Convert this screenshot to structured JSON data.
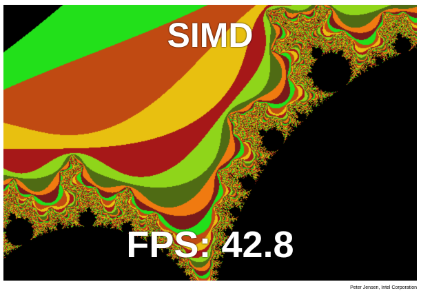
{
  "demo": {
    "title": "SIMD",
    "fps_label": "FPS:",
    "fps_value": "42.8",
    "credit": "Peter Jensen, Intel Corporation"
  },
  "colors": {
    "background": "#000000",
    "text": "#ffffff",
    "palette": [
      "#8fd51a",
      "#4f6b14",
      "#f07a10",
      "#7a1a1a",
      "#22e01a",
      "#c04a12",
      "#e8c010",
      "#a61818"
    ]
  }
}
